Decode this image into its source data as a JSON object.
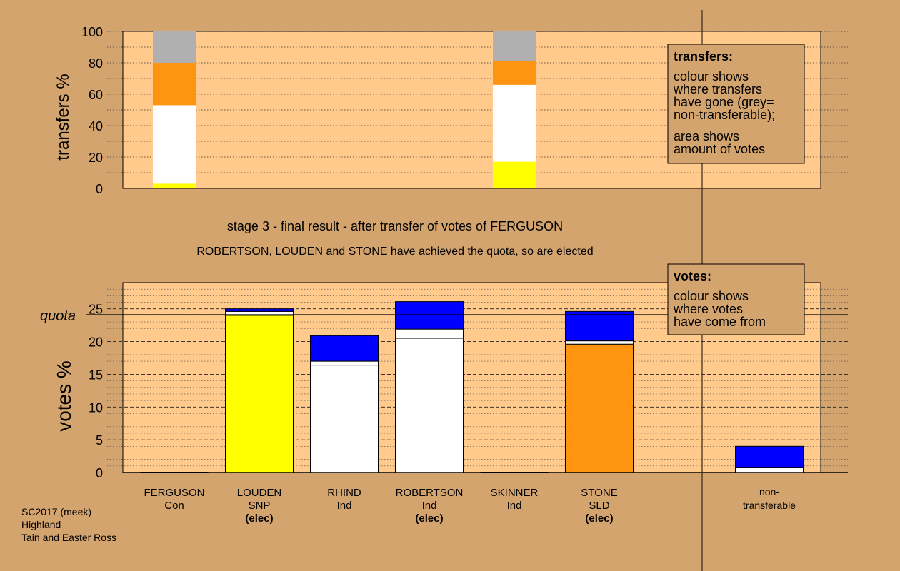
{
  "chart_data": [
    {
      "type": "bar",
      "stacked": true,
      "ylabel": "transfers %",
      "ylim": [
        0,
        100
      ],
      "yticks": [
        0,
        20,
        40,
        60,
        80,
        100
      ],
      "columns": [
        {
          "index": 0,
          "segments": [
            {
              "color": "#ffff00",
              "value": 3
            },
            {
              "color": "#ffffff",
              "value": 50
            },
            {
              "color": "#ff9410",
              "value": 27
            },
            {
              "color": "#b0b0b0",
              "value": 20
            }
          ]
        },
        {
          "index": 4,
          "segments": [
            {
              "color": "#ffff00",
              "value": 17
            },
            {
              "color": "#ffffff",
              "value": 49
            },
            {
              "color": "#ff9410",
              "value": 15
            },
            {
              "color": "#b0b0b0",
              "value": 19
            }
          ]
        }
      ],
      "legend": {
        "title": "transfers:",
        "lines": [
          "colour shows",
          "where transfers",
          "have gone (grey=",
          "non-transferable);"
        ],
        "lines2": [
          "area shows",
          "amount of votes"
        ]
      }
    },
    {
      "type": "bar",
      "stacked": true,
      "title": "stage 3 - final result - after transfer of votes of FERGUSON",
      "subtitle": "ROBERTSON, LOUDEN and STONE have achieved the quota, so are elected",
      "ylabel": "votes %",
      "ylim": [
        0,
        29
      ],
      "yticks": [
        0,
        5,
        10,
        15,
        20,
        25
      ],
      "quota": 24.1,
      "quota_label": "quota",
      "categories": [
        {
          "name": "FERGUSON",
          "party": "Con",
          "elected": ""
        },
        {
          "name": "LOUDEN",
          "party": "SNP",
          "elected": "(elec)"
        },
        {
          "name": "RHIND",
          "party": "Ind",
          "elected": ""
        },
        {
          "name": "ROBERTSON",
          "party": "Ind",
          "elected": "(elec)"
        },
        {
          "name": "SKINNER",
          "party": "Ind",
          "elected": ""
        },
        {
          "name": "STONE",
          "party": "SLD",
          "elected": "(elec)"
        }
      ],
      "nontransferable_label": [
        "non-",
        "transferable"
      ],
      "bars": [
        {
          "index": 0,
          "segments": []
        },
        {
          "index": 1,
          "segments": [
            {
              "color": "#ffff00",
              "value": 24.0
            },
            {
              "color": "#ffffff",
              "value": 0.6
            },
            {
              "color": "#0000ff",
              "value": 0.4
            }
          ]
        },
        {
          "index": 2,
          "segments": [
            {
              "color": "#ffffff",
              "value": 16.4
            },
            {
              "color": "#ffffff",
              "value": 0.6
            },
            {
              "color": "#0000ff",
              "value": 3.9
            }
          ]
        },
        {
          "index": 3,
          "segments": [
            {
              "color": "#ffffff",
              "value": 20.5
            },
            {
              "color": "#ffffff",
              "value": 1.4
            },
            {
              "color": "#0000ff",
              "value": 4.2
            }
          ]
        },
        {
          "index": 4,
          "segments": []
        },
        {
          "index": 5,
          "segments": [
            {
              "color": "#ff9410",
              "value": 19.6
            },
            {
              "color": "#ffffff",
              "value": 0.5
            },
            {
              "color": "#0000ff",
              "value": 4.5
            }
          ]
        },
        {
          "index": 7,
          "segments": [
            {
              "color": "#ffffff",
              "value": 0.8
            },
            {
              "color": "#0000ff",
              "value": 3.2
            }
          ]
        }
      ],
      "legend": {
        "title": "votes:",
        "lines": [
          "colour shows",
          "where votes",
          "have come from"
        ]
      }
    }
  ],
  "footer": {
    "lines": [
      "SC2017 (meek)",
      "Highland",
      "Tain and Easter Ross"
    ]
  }
}
